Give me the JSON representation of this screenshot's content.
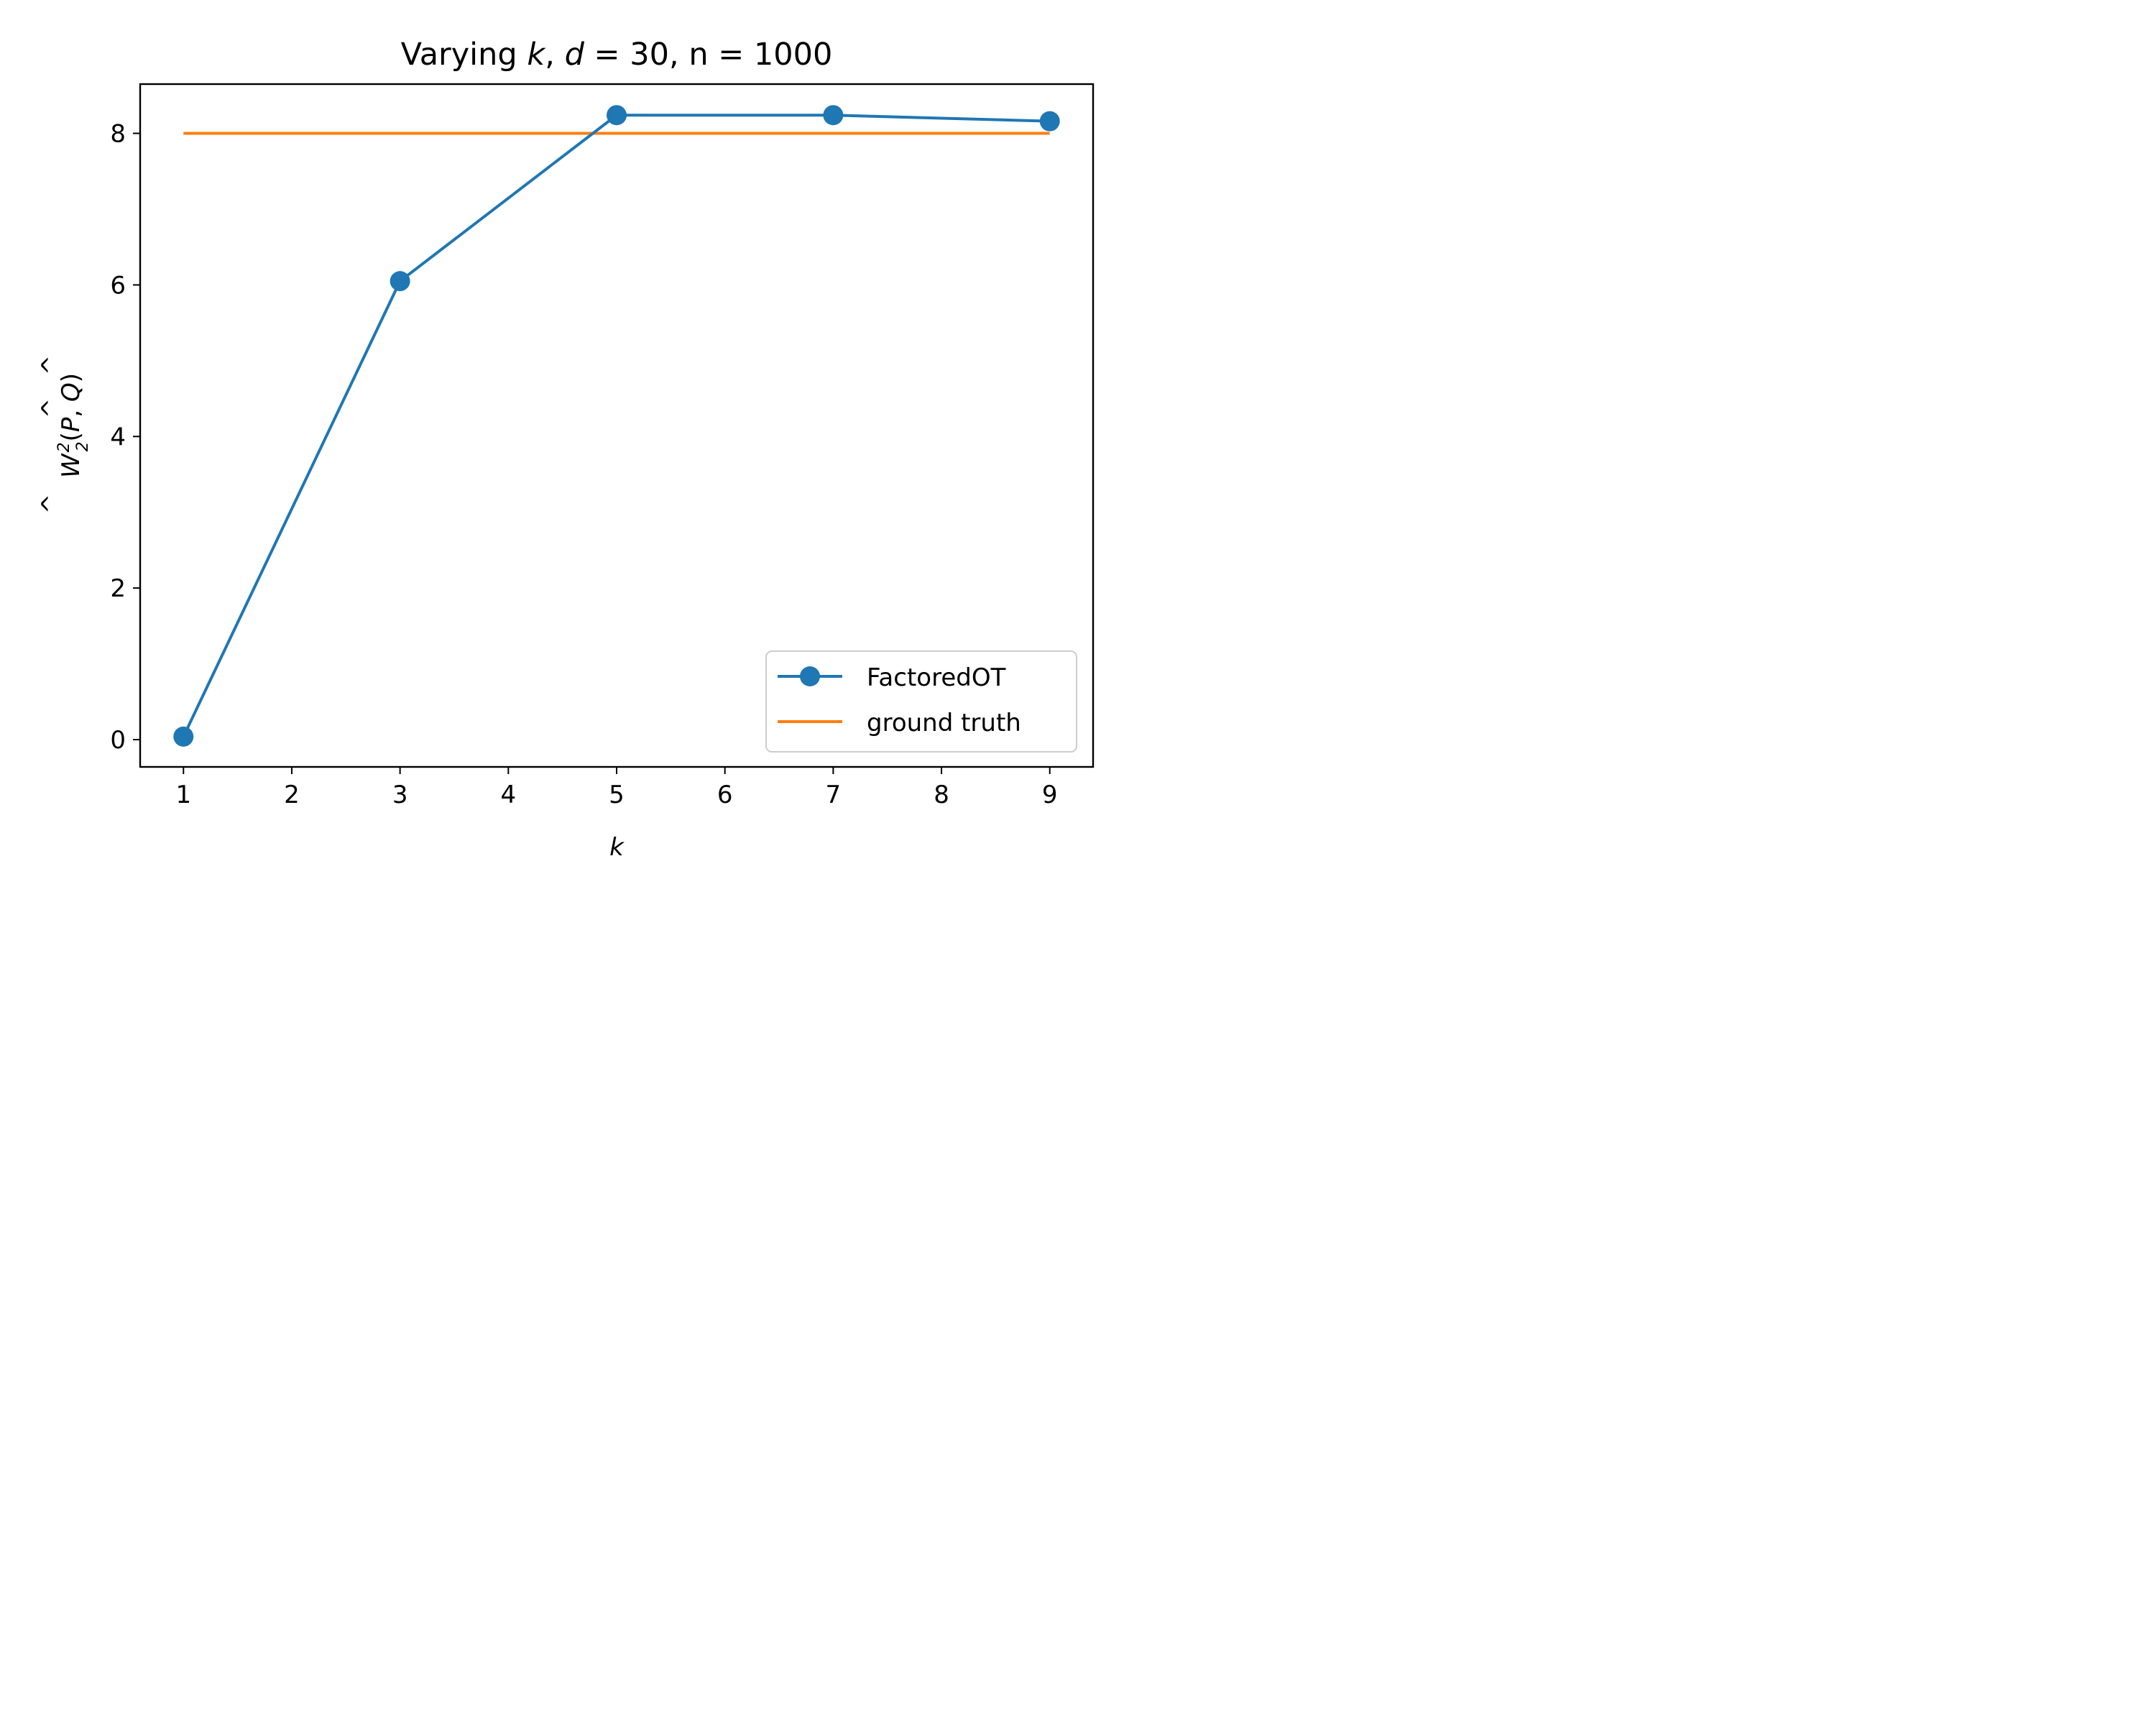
{
  "chart_data": {
    "type": "line",
    "title": {
      "prefix": "Varying ",
      "var_k": "k",
      "sep": ", ",
      "var_d": "d",
      "d_eq": " = 30",
      "n_part": ", n = 1000"
    },
    "xlabel": "k",
    "ylabel": {
      "hat": "^",
      "W": "W",
      "sup": "2",
      "sub": "2",
      "open": "(",
      "P": "P",
      "comma": ", ",
      "Q": "Q",
      "close": ")"
    },
    "xlim": [
      0.6,
      9.4
    ],
    "ylim": [
      -0.36,
      8.65
    ],
    "xticks": [
      1,
      2,
      3,
      4,
      5,
      6,
      7,
      8,
      9
    ],
    "xtick_labels": [
      "1",
      "2",
      "3",
      "4",
      "5",
      "6",
      "7",
      "8",
      "9"
    ],
    "yticks": [
      0,
      2,
      4,
      6,
      8
    ],
    "ytick_labels": [
      "0",
      "2",
      "4",
      "6",
      "8"
    ],
    "grid": false,
    "legend_position": "lower-right",
    "series": [
      {
        "name": "FactoredOT",
        "color": "#1f77b4",
        "marker": "circle",
        "x": [
          1,
          3,
          5,
          7,
          9
        ],
        "y": [
          0.04,
          6.05,
          8.24,
          8.24,
          8.16
        ]
      },
      {
        "name": "ground truth",
        "color": "#ff7f0e",
        "marker": "none",
        "x": [
          1,
          9
        ],
        "y": [
          8.0,
          8.0
        ]
      }
    ]
  }
}
